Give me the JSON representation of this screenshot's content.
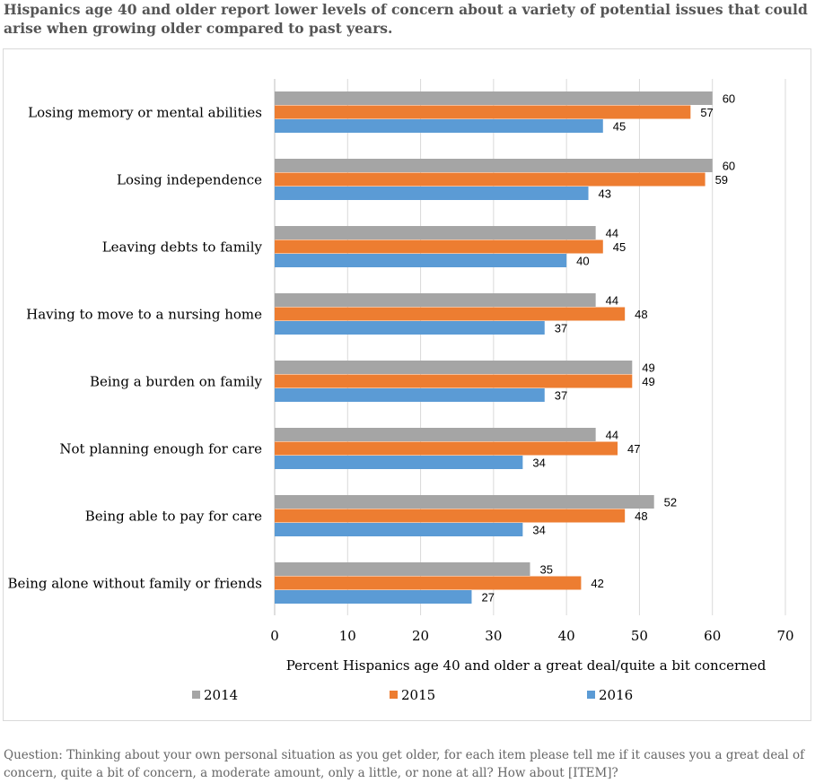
{
  "title": "Hispanics age 40 and older report lower levels of concern about a variety of potential issues that could arise when growing older compared to past years.",
  "note": "Question: Thinking about your own personal situation as you get older, for each item please tell me if it causes you a great deal of concern, quite a bit of concern, a moderate amount, only a little, or none at all? How about [ITEM]?",
  "colors": {
    "2014": "#a5a5a5",
    "2015": "#ed7d31",
    "2016": "#5b9bd5",
    "grid": "#d9d9d9",
    "axis": "#bfbfbf",
    "text": "#000000"
  },
  "chart_data": {
    "type": "bar",
    "orientation": "horizontal",
    "categories": [
      "Losing memory or mental abilities",
      "Losing independence",
      "Leaving debts to family",
      "Having to move to a nursing home",
      "Being a burden on family",
      "Not planning enough for care",
      "Being able to pay for care",
      "Being alone without family or friends"
    ],
    "series": [
      {
        "name": "2014",
        "values": [
          60,
          60,
          44,
          44,
          49,
          44,
          52,
          35
        ]
      },
      {
        "name": "2015",
        "values": [
          57,
          59,
          45,
          48,
          49,
          47,
          48,
          42
        ]
      },
      {
        "name": "2016",
        "values": [
          45,
          43,
          40,
          37,
          37,
          34,
          34,
          27
        ]
      }
    ],
    "xlabel": "Percent Hispanics age 40 and older a great deal/quite a bit concerned",
    "xlim": [
      0,
      70
    ],
    "xticks": [
      "0",
      "10",
      "20",
      "30",
      "40",
      "50",
      "60",
      "70"
    ],
    "grid": true,
    "legend": "bottom"
  }
}
